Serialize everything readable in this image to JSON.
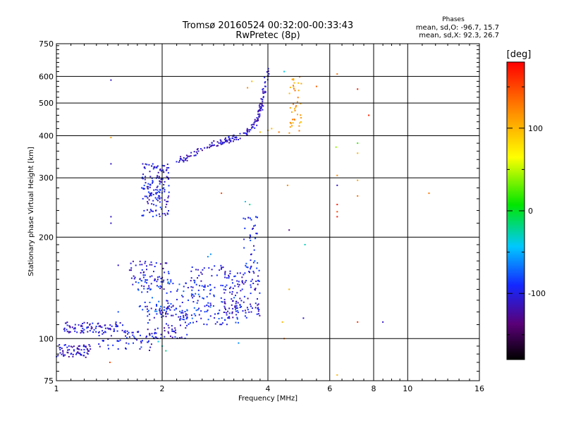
{
  "chart_data": {
    "type": "scatter",
    "title": "Tromsø 20160524 00:32:00-00:33:43",
    "subtitle": "RwPretec (8p)",
    "xlabel": "Frequency [MHz]",
    "ylabel": "Stationary phase Virtual Height [km]",
    "x_scale": "log",
    "y_scale": "log",
    "xlim": [
      1,
      16
    ],
    "ylim": [
      75,
      750
    ],
    "x_ticks": [
      "1",
      "2",
      "4",
      "6",
      "8",
      "10",
      "16"
    ],
    "y_ticks": [
      "75",
      "100",
      "200",
      "300",
      "400",
      "500",
      "600",
      "750"
    ],
    "grid": true,
    "phase_stats": {
      "title": "Phases",
      "line_o": "mean, sd,O: -96.7, 15.7",
      "line_x": "mean, sd,X:  92.3, 26.7"
    },
    "colorbar": {
      "label": "[deg]",
      "min": -180,
      "max": 180,
      "ticks": [
        "100",
        "0",
        "-100"
      ],
      "colormap": "rainbow"
    },
    "clusters": [
      {
        "x": [
          1.0,
          1.25
        ],
        "y": [
          88,
          96
        ],
        "phase": -110,
        "n": 70
      },
      {
        "x": [
          1.05,
          1.6
        ],
        "y": [
          104,
          112
        ],
        "phase": -105,
        "n": 90
      },
      {
        "x": [
          1.3,
          1.9
        ],
        "y": [
          92,
          105
        ],
        "phase": -100,
        "n": 60
      },
      {
        "x": [
          1.6,
          2.1
        ],
        "y": [
          140,
          170
        ],
        "phase": -105,
        "n": 70
      },
      {
        "x": [
          1.7,
          2.15
        ],
        "y": [
          120,
          150
        ],
        "phase": -85,
        "n": 50
      },
      {
        "x": [
          1.75,
          2.1
        ],
        "y": [
          230,
          330
        ],
        "phase": -100,
        "n": 160
      },
      {
        "x": [
          1.8,
          2.4
        ],
        "y": [
          100,
          125
        ],
        "phase": -105,
        "n": 90
      },
      {
        "x": [
          2.2,
          3.3
        ],
        "y": [
          110,
          145
        ],
        "phase": -90,
        "n": 130
      },
      {
        "x": [
          2.3,
          3.0
        ],
        "y": [
          140,
          165
        ],
        "phase": -100,
        "n": 35
      },
      {
        "x": [
          3.0,
          3.8
        ],
        "y": [
          115,
          160
        ],
        "phase": -105,
        "n": 120
      },
      {
        "x": [
          3.4,
          3.75
        ],
        "y": [
          160,
          230
        ],
        "phase": -95,
        "n": 40
      },
      {
        "x": [
          4.6,
          5.0
        ],
        "y": [
          405,
          600
        ],
        "phase": 115,
        "n": 40
      }
    ],
    "trace_x_curve": {
      "x": [
        2.2,
        2.35,
        2.55,
        2.8,
        3.0,
        3.2,
        3.45,
        3.6,
        3.7,
        3.8,
        3.85,
        3.9,
        3.95,
        4.0
      ],
      "y": [
        335,
        345,
        362,
        378,
        386,
        393,
        405,
        420,
        440,
        470,
        500,
        540,
        590,
        640
      ],
      "phase": -110,
      "n": 180
    },
    "scattered_points": [
      {
        "x": 1.43,
        "y": 585,
        "phase": -110
      },
      {
        "x": 1.43,
        "y": 395,
        "phase": 110
      },
      {
        "x": 1.43,
        "y": 330,
        "phase": -110
      },
      {
        "x": 1.43,
        "y": 230,
        "phase": -110
      },
      {
        "x": 1.43,
        "y": 220,
        "phase": -110
      },
      {
        "x": 1.42,
        "y": 85,
        "phase": 150
      },
      {
        "x": 2.95,
        "y": 270,
        "phase": 150
      },
      {
        "x": 4.6,
        "y": 210,
        "phase": -130
      },
      {
        "x": 4.55,
        "y": 285,
        "phase": 120
      },
      {
        "x": 5.1,
        "y": 190,
        "phase": -30
      },
      {
        "x": 4.6,
        "y": 140,
        "phase": 100
      },
      {
        "x": 5.05,
        "y": 115,
        "phase": -110
      },
      {
        "x": 6.3,
        "y": 610,
        "phase": 130
      },
      {
        "x": 7.2,
        "y": 550,
        "phase": 170
      },
      {
        "x": 7.75,
        "y": 460,
        "phase": 165
      },
      {
        "x": 6.25,
        "y": 370,
        "phase": 40
      },
      {
        "x": 7.2,
        "y": 380,
        "phase": 20
      },
      {
        "x": 7.2,
        "y": 355,
        "phase": 100
      },
      {
        "x": 6.3,
        "y": 305,
        "phase": 120
      },
      {
        "x": 7.2,
        "y": 295,
        "phase": 110
      },
      {
        "x": 6.3,
        "y": 285,
        "phase": -110
      },
      {
        "x": 7.2,
        "y": 265,
        "phase": 130
      },
      {
        "x": 6.3,
        "y": 250,
        "phase": 170
      },
      {
        "x": 6.3,
        "y": 238,
        "phase": 150
      },
      {
        "x": 6.3,
        "y": 230,
        "phase": 170
      },
      {
        "x": 6.3,
        "y": 78,
        "phase": 100
      },
      {
        "x": 7.2,
        "y": 112,
        "phase": 160
      },
      {
        "x": 8.5,
        "y": 112,
        "phase": -110
      },
      {
        "x": 11.5,
        "y": 270,
        "phase": 130
      },
      {
        "x": 3.5,
        "y": 555,
        "phase": 120
      },
      {
        "x": 3.6,
        "y": 580,
        "phase": 100
      },
      {
        "x": 4.0,
        "y": 415,
        "phase": 110
      },
      {
        "x": 4.1,
        "y": 420,
        "phase": 100
      },
      {
        "x": 4.3,
        "y": 410,
        "phase": 130
      },
      {
        "x": 3.8,
        "y": 410,
        "phase": 100
      },
      {
        "x": 4.45,
        "y": 620,
        "phase": -40
      },
      {
        "x": 5.5,
        "y": 560,
        "phase": 140
      },
      {
        "x": 4.45,
        "y": 100,
        "phase": 130
      },
      {
        "x": 4.4,
        "y": 112,
        "phase": 100
      },
      {
        "x": 3.3,
        "y": 97,
        "phase": -60
      },
      {
        "x": 2.0,
        "y": 95,
        "phase": -30
      },
      {
        "x": 2.05,
        "y": 92,
        "phase": -20
      },
      {
        "x": 1.95,
        "y": 98,
        "phase": -40
      },
      {
        "x": 1.5,
        "y": 120,
        "phase": -80
      },
      {
        "x": 1.5,
        "y": 165,
        "phase": -110
      },
      {
        "x": 2.7,
        "y": 175,
        "phase": -60
      },
      {
        "x": 2.75,
        "y": 178,
        "phase": -60
      },
      {
        "x": 3.45,
        "y": 255,
        "phase": -40
      },
      {
        "x": 3.55,
        "y": 250,
        "phase": -20
      },
      {
        "x": 3.7,
        "y": 230,
        "phase": -80
      }
    ]
  }
}
